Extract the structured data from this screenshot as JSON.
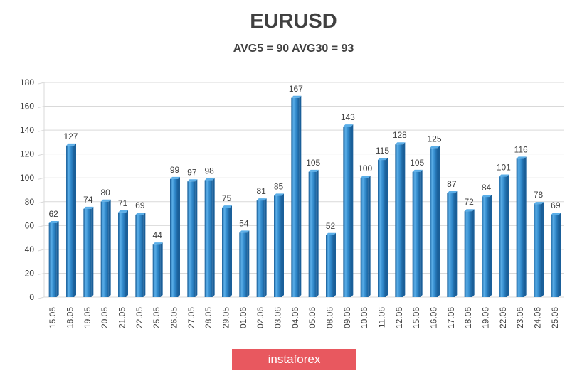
{
  "chart_data": {
    "type": "bar",
    "title": "EURUSD",
    "subtitle": "AVG5 = 90 AVG30 = 93",
    "xlabel": "",
    "ylabel": "",
    "ylim": [
      0,
      180
    ],
    "yticks": [
      0,
      20,
      40,
      60,
      80,
      100,
      120,
      140,
      160,
      180
    ],
    "grid": true,
    "categories": [
      "15.05",
      "18.05",
      "19.05",
      "20.05",
      "21.05",
      "22.05",
      "25.05",
      "26.05",
      "27.05",
      "28.05",
      "29.05",
      "01.06",
      "02.06",
      "03.06",
      "04.06",
      "05.06",
      "08.06",
      "09.06",
      "10.06",
      "11.06",
      "12.06",
      "15.06",
      "16.06",
      "17.06",
      "18.06",
      "19.06",
      "22.06",
      "23.06",
      "24.06",
      "25.06"
    ],
    "values": [
      62,
      127,
      74,
      80,
      71,
      69,
      44,
      99,
      97,
      98,
      75,
      54,
      81,
      85,
      167,
      105,
      52,
      143,
      100,
      115,
      128,
      105,
      125,
      87,
      72,
      84,
      101,
      116,
      78,
      69
    ],
    "bar_color": "#2e86c8",
    "bar_color_light": "#5aaee8",
    "bar_color_dark": "#1a5f99"
  },
  "watermark": "instaforex",
  "colors": {
    "watermark_bg": "#e8585f",
    "gridline": "#d9d9d9",
    "text": "#404040"
  }
}
